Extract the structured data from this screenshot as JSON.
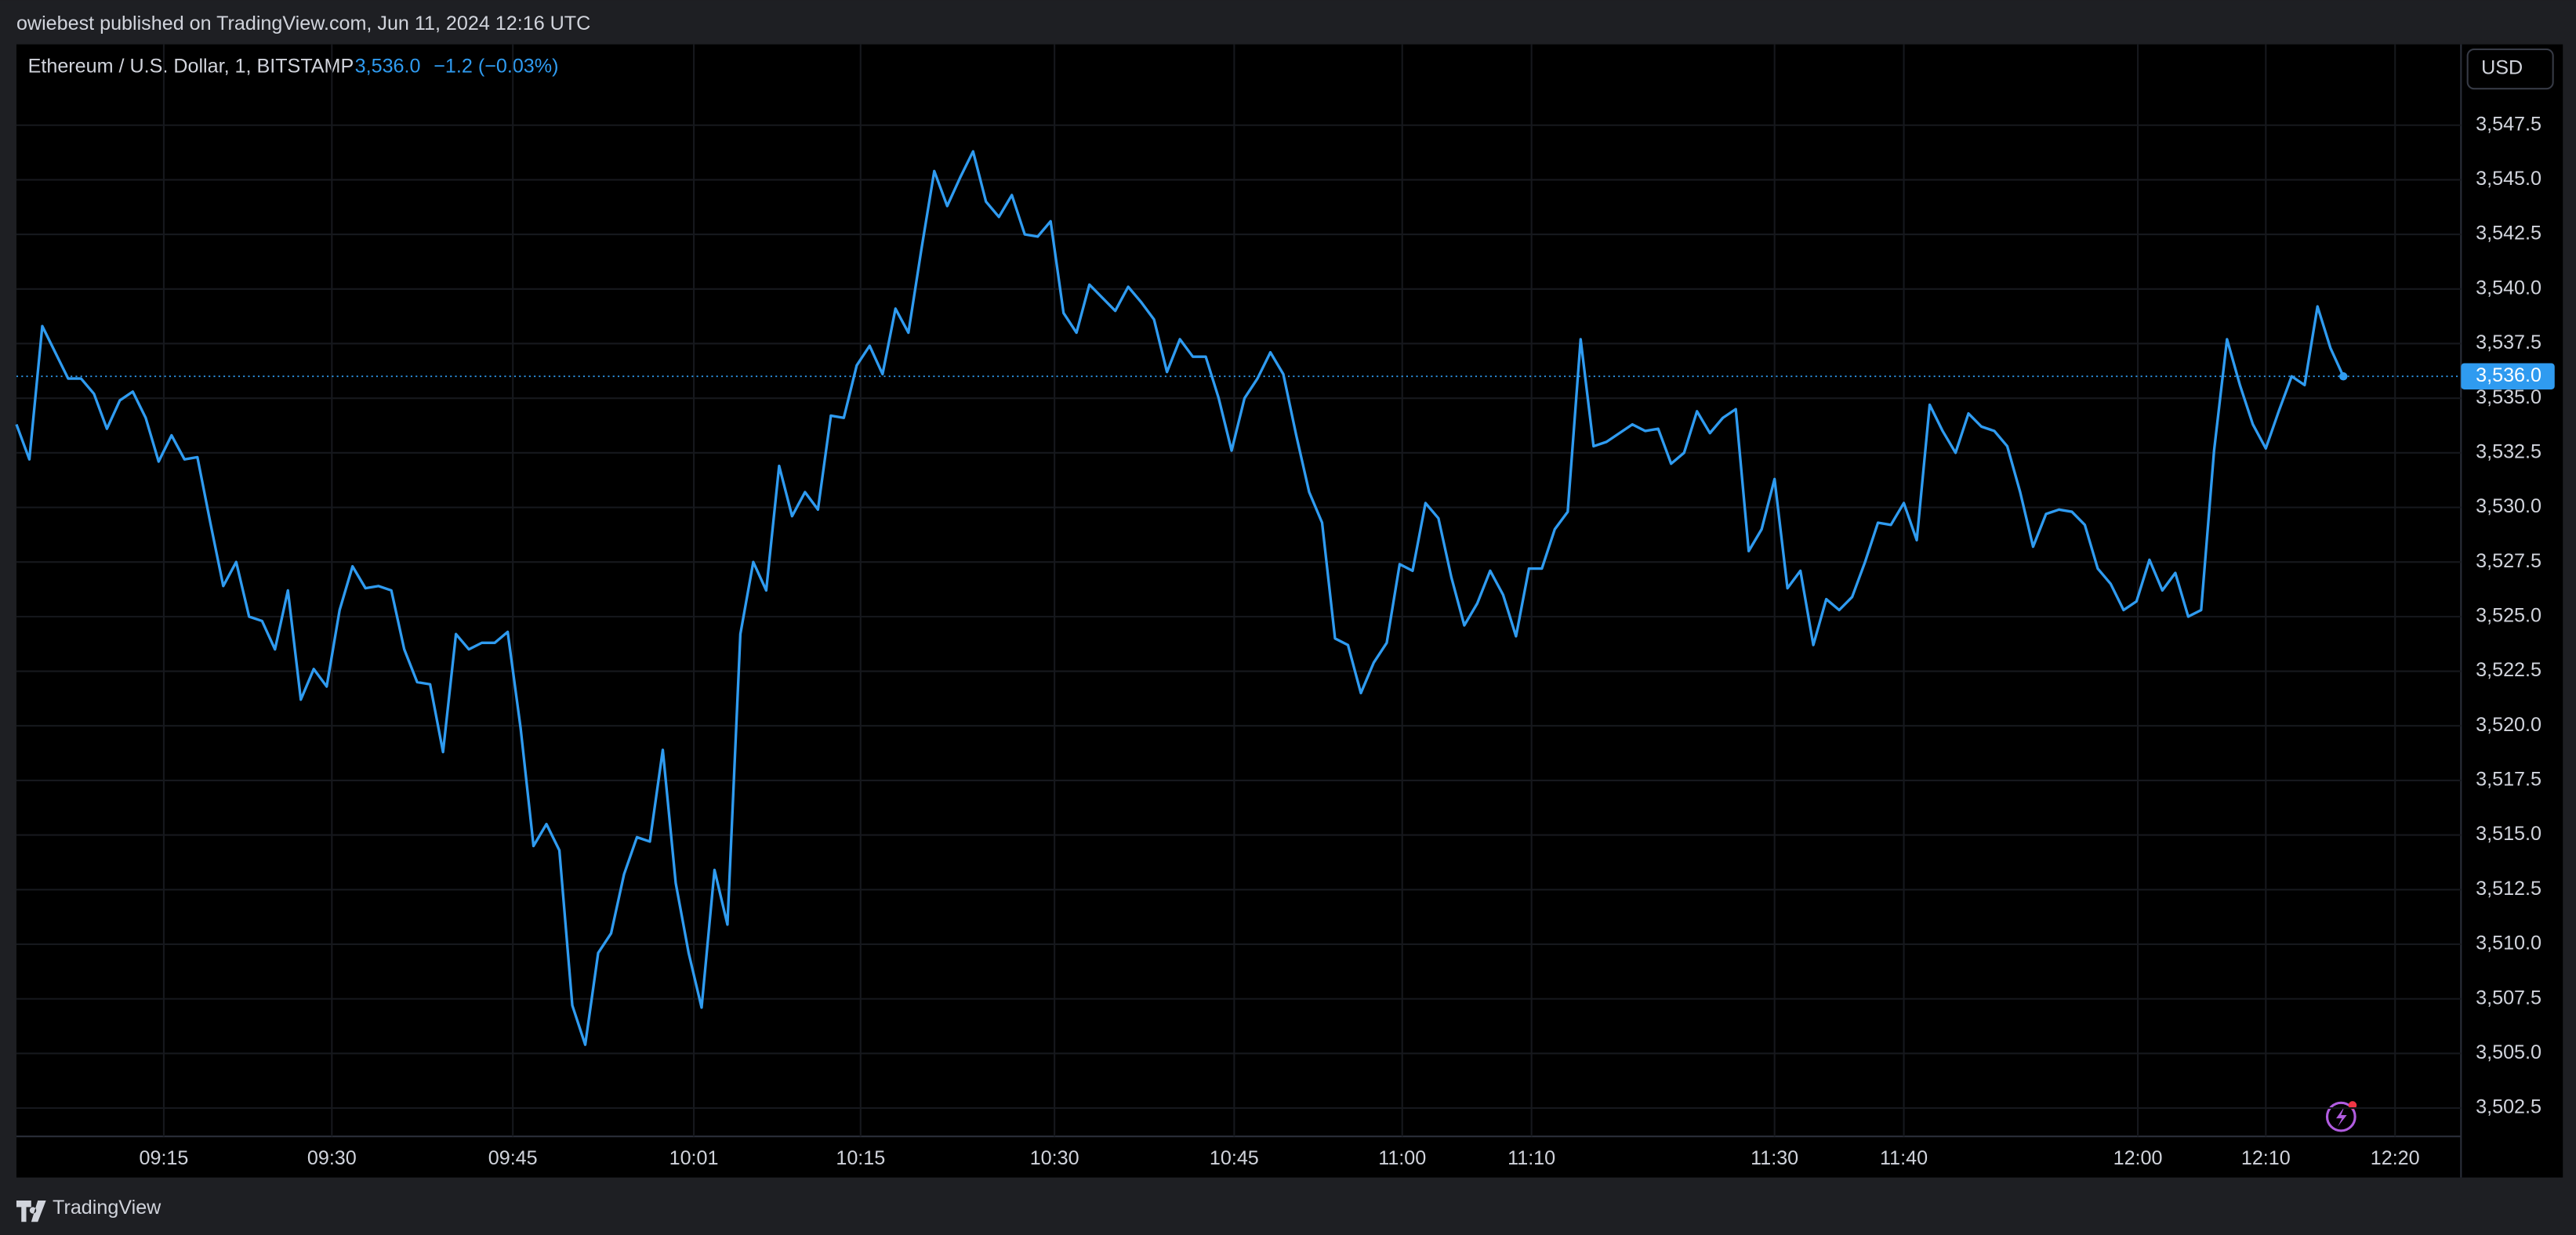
{
  "chart_data": {
    "type": "line",
    "header": "owiebest published on TradingView.com, Jun 11, 2024 12:16 UTC",
    "footer": "TradingView",
    "currency": "USD",
    "price_label": "3,536.0",
    "change_label": "−1.2 (−0.03%)",
    "grid": true,
    "series": [
      {
        "name": "Ethereum / U.S. Dollar, 1, BITSTAMP",
        "color": "#2f9bf0",
        "values": [
          3533.8,
          3532.2,
          3538.3,
          3537.1,
          3535.9,
          3535.9,
          3535.2,
          3533.6,
          3534.9,
          3535.3,
          3534.1,
          3532.1,
          3533.3,
          3532.2,
          3532.3,
          3529.3,
          3526.4,
          3527.5,
          3525.0,
          3524.8,
          3523.5,
          3526.2,
          3521.2,
          3522.6,
          3521.8,
          3525.3,
          3527.3,
          3526.3,
          3526.4,
          3526.2,
          3523.5,
          3522.0,
          3521.9,
          3518.8,
          3524.2,
          3523.5,
          3523.8,
          3523.8,
          3524.3,
          3519.9,
          3514.5,
          3515.5,
          3514.3,
          3507.2,
          3505.4,
          3509.6,
          3510.5,
          3513.2,
          3514.9,
          3514.7,
          3518.9,
          3512.8,
          3509.6,
          3507.1,
          3513.4,
          3510.9,
          3524.2,
          3527.5,
          3526.2,
          3531.9,
          3529.6,
          3530.7,
          3529.9,
          3534.2,
          3534.1,
          3536.5,
          3537.4,
          3536.1,
          3539.1,
          3538.0,
          3541.8,
          3545.4,
          3543.8,
          3545.1,
          3546.3,
          3544.0,
          3543.3,
          3544.3,
          3542.5,
          3542.4,
          3543.1,
          3538.9,
          3538.0,
          3540.2,
          3539.6,
          3539.0,
          3540.1,
          3539.4,
          3538.6,
          3536.2,
          3537.7,
          3536.9,
          3536.9,
          3535.0,
          3532.6,
          3535.0,
          3535.9,
          3537.1,
          3536.1,
          3533.3,
          3530.7,
          3529.3,
          3524.0,
          3523.7,
          3521.5,
          3522.9,
          3523.8,
          3527.4,
          3527.1,
          3530.2,
          3529.5,
          3526.8,
          3524.6,
          3525.6,
          3527.1,
          3526.0,
          3524.1,
          3527.2,
          3527.2,
          3529.0,
          3529.8,
          3537.7,
          3532.8,
          3533.0,
          3533.4,
          3533.8,
          3533.5,
          3533.6,
          3532.0,
          3532.5,
          3534.4,
          3533.4,
          3534.1,
          3534.5,
          3528.0,
          3529.0,
          3531.3,
          3526.3,
          3527.1,
          3523.7,
          3525.8,
          3525.3,
          3525.9,
          3527.5,
          3529.3,
          3529.2,
          3530.2,
          3528.5,
          3534.7,
          3533.5,
          3532.5,
          3534.3,
          3533.7,
          3533.5,
          3532.8,
          3530.7,
          3528.2,
          3529.7,
          3529.9,
          3529.8,
          3529.2,
          3527.2,
          3526.5,
          3525.3,
          3525.7,
          3527.6,
          3526.2,
          3527.0,
          3525.0,
          3525.3,
          3532.6,
          3537.7,
          3535.6,
          3533.8,
          3532.7,
          3534.4,
          3536.0,
          3535.6,
          3539.2,
          3537.3,
          3536.0
        ]
      }
    ],
    "xlim": [
      0,
      189.1
    ],
    "xticks": [
      {
        "value": 11.4,
        "label": "09:15"
      },
      {
        "value": 24.4,
        "label": "09:30"
      },
      {
        "value": 38.4,
        "label": "09:45"
      },
      {
        "value": 52.4,
        "label": "10:01"
      },
      {
        "value": 65.3,
        "label": "10:15"
      },
      {
        "value": 80.3,
        "label": "10:30"
      },
      {
        "value": 94.2,
        "label": "10:45"
      },
      {
        "value": 107.2,
        "label": "11:00"
      },
      {
        "value": 117.2,
        "label": "11:10"
      },
      {
        "value": 136.0,
        "label": "11:30"
      },
      {
        "value": 146.0,
        "label": "11:40"
      },
      {
        "value": 164.1,
        "label": "12:00"
      },
      {
        "value": 174.0,
        "label": "12:10"
      },
      {
        "value": 184.0,
        "label": "12:20"
      }
    ],
    "ylim": [
      3501.2,
      3551.2
    ],
    "yticks": [
      {
        "value": 3502.5,
        "label": "3,502.5"
      },
      {
        "value": 3505,
        "label": "3,505.0"
      },
      {
        "value": 3507.5,
        "label": "3,507.5"
      },
      {
        "value": 3510,
        "label": "3,510.0"
      },
      {
        "value": 3512.5,
        "label": "3,512.5"
      },
      {
        "value": 3515,
        "label": "3,515.0"
      },
      {
        "value": 3517.5,
        "label": "3,517.5"
      },
      {
        "value": 3520,
        "label": "3,520.0"
      },
      {
        "value": 3522.5,
        "label": "3,522.5"
      },
      {
        "value": 3525,
        "label": "3,525.0"
      },
      {
        "value": 3527.5,
        "label": "3,527.5"
      },
      {
        "value": 3530,
        "label": "3,530.0"
      },
      {
        "value": 3532.5,
        "label": "3,532.5"
      },
      {
        "value": 3535,
        "label": "3,535.0"
      },
      {
        "value": 3537.5,
        "label": "3,537.5"
      },
      {
        "value": 3540,
        "label": "3,540.0"
      },
      {
        "value": 3542.5,
        "label": "3,542.5"
      },
      {
        "value": 3545,
        "label": "3,545.0"
      },
      {
        "value": 3547.5,
        "label": "3,547.5"
      }
    ]
  }
}
